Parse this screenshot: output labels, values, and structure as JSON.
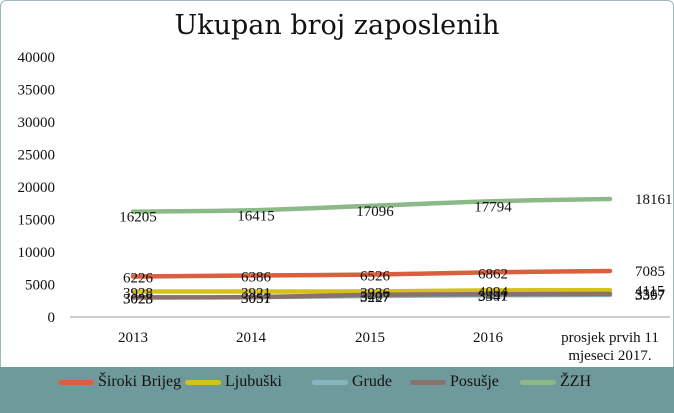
{
  "chart_data": {
    "type": "line",
    "title": "Ukupan broj zaposlenih",
    "categories": [
      "2013",
      "2014",
      "2015",
      "2016",
      "prosjek prvih 11 mjeseci 2017."
    ],
    "category_lines": [
      [
        "2013"
      ],
      [
        "2014"
      ],
      [
        "2015"
      ],
      [
        "2016"
      ],
      [
        "prosjek prvih 11",
        "mjeseci 2017."
      ]
    ],
    "ylim": [
      0,
      40000
    ],
    "yticks": [
      "0",
      "5000",
      "10000",
      "15000",
      "20000",
      "25000",
      "30000",
      "35000",
      "40000"
    ],
    "grid": false,
    "legend_position": "bottom",
    "series": [
      {
        "name": "Široki Brijeg",
        "color": "#d9603f",
        "values": [
          6226,
          6386,
          6526,
          6862,
          7085
        ]
      },
      {
        "name": "Ljubuški",
        "color": "#d4c21b",
        "values": [
          3928,
          3921,
          3936,
          4094,
          4115
        ]
      },
      {
        "name": "Grude",
        "color": "#87b7be",
        "values": [
          3023,
          3057,
          3227,
          3347,
          3397
        ]
      },
      {
        "name": "Posušje",
        "color": "#8a716b",
        "values": [
          3028,
          3051,
          3407,
          3491,
          3567
        ]
      },
      {
        "name": "ŽZH",
        "color": "#8db887",
        "values": [
          16205,
          16415,
          17096,
          17794,
          18161
        ]
      }
    ]
  }
}
